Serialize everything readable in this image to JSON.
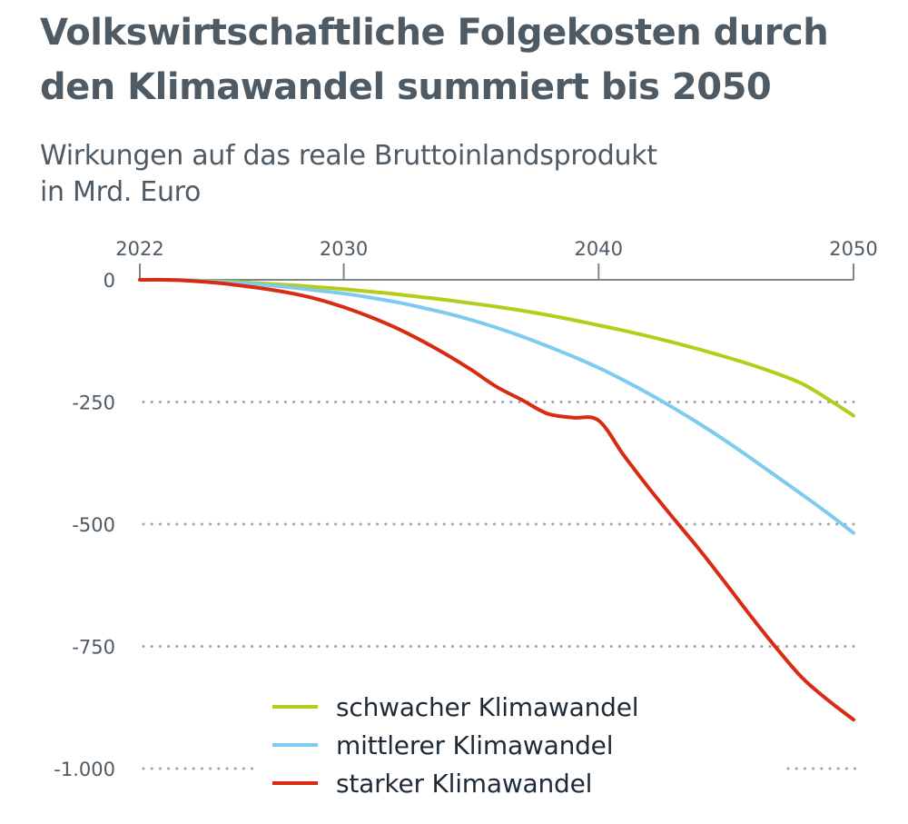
{
  "header": {
    "title": "Volkswirtschaftliche Folgekosten durch den Klimawandel summiert bis 2050",
    "subtitle_line1": "Wirkungen auf das reale Bruttoinlandsprodukt",
    "subtitle_line2": "in Mrd. Euro"
  },
  "colors": {
    "axis": "#7b8590",
    "grid": "#9aa3ab",
    "text": "#4e5a64",
    "schwach": "#b5cc18",
    "mittel": "#7ecbf0",
    "stark": "#d92b12"
  },
  "chart_data": {
    "type": "line",
    "title": "Volkswirtschaftliche Folgekosten durch den Klimawandel summiert bis 2050",
    "subtitle": "Wirkungen auf das reale Bruttoinlandsprodukt in Mrd. Euro",
    "xlabel": "",
    "ylabel": "Mrd. Euro",
    "x_ticks": [
      "2022",
      "2030",
      "2040",
      "2050"
    ],
    "y_ticks": [
      "0",
      "-250",
      "-500",
      "-750",
      "-1.000"
    ],
    "y_tick_values": [
      0,
      -250,
      -500,
      -750,
      -1000
    ],
    "xlim": [
      2022,
      2050
    ],
    "ylim": [
      -1000,
      0
    ],
    "grid": "horizontal dotted",
    "x_axis_position": "top",
    "legend_position": "bottom-center inside plot",
    "x": [
      2022,
      2023,
      2024,
      2025,
      2026,
      2027,
      2028,
      2029,
      2030,
      2031,
      2032,
      2033,
      2034,
      2035,
      2036,
      2037,
      2038,
      2039,
      2040,
      2041,
      2042,
      2043,
      2044,
      2045,
      2046,
      2047,
      2048,
      2049,
      2050
    ],
    "series": [
      {
        "name": "schwacher Klimawandel",
        "color": "#b5cc18",
        "values": [
          0,
          0,
          -1,
          -3,
          -5,
          -8,
          -11,
          -15,
          -19,
          -24,
          -29,
          -35,
          -41,
          -48,
          -55,
          -63,
          -72,
          -82,
          -93,
          -104,
          -116,
          -129,
          -143,
          -158,
          -174,
          -192,
          -213,
          -244,
          -278
        ]
      },
      {
        "name": "mittlerer Klimawandel",
        "color": "#7ecbf0",
        "values": [
          0,
          0,
          -1,
          -4,
          -7,
          -11,
          -16,
          -22,
          -28,
          -36,
          -45,
          -56,
          -68,
          -82,
          -98,
          -116,
          -136,
          -157,
          -180,
          -206,
          -234,
          -264,
          -296,
          -330,
          -366,
          -403,
          -440,
          -478,
          -518
        ]
      },
      {
        "name": "starker Klimawandel",
        "color": "#d92b12",
        "values": [
          0,
          0,
          -2,
          -6,
          -12,
          -19,
          -28,
          -40,
          -56,
          -75,
          -97,
          -123,
          -152,
          -184,
          -219,
          -246,
          -274,
          -282,
          -288,
          -360,
          -428,
          -492,
          -555,
          -622,
          -690,
          -755,
          -815,
          -860,
          -900
        ]
      }
    ]
  },
  "legend": {
    "items": [
      {
        "label": "schwacher Klimawandel",
        "color": "#b5cc18"
      },
      {
        "label": "mittlerer Klimawandel",
        "color": "#7ecbf0"
      },
      {
        "label": "starker Klimawandel",
        "color": "#d92b12"
      }
    ]
  }
}
